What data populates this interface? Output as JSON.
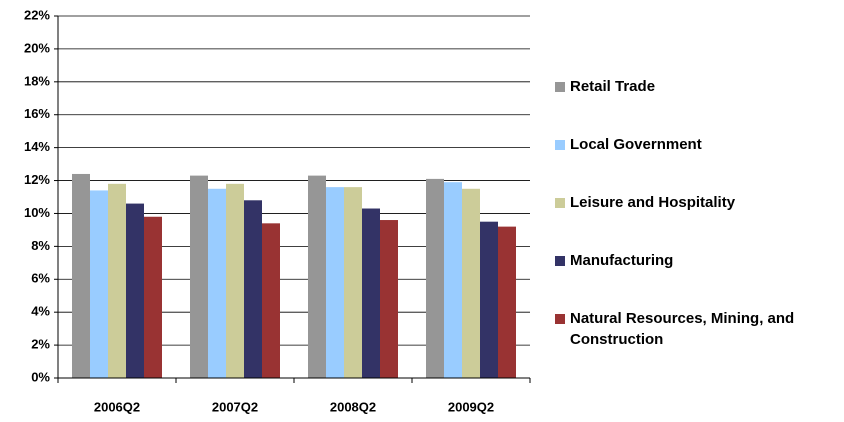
{
  "chart_data": {
    "type": "bar",
    "categories": [
      "2006Q2",
      "2007Q2",
      "2008Q2",
      "2009Q2"
    ],
    "series": [
      {
        "name": "Retail Trade",
        "color": "#969696",
        "values": [
          12.4,
          12.3,
          12.3,
          12.1
        ]
      },
      {
        "name": "Local Government",
        "color": "#99ccff",
        "values": [
          11.4,
          11.5,
          11.6,
          11.9
        ]
      },
      {
        "name": "Leisure and Hospitality",
        "color": "#cccc99",
        "values": [
          11.8,
          11.8,
          11.6,
          11.5
        ]
      },
      {
        "name": "Manufacturing",
        "color": "#333366",
        "values": [
          10.6,
          10.8,
          10.3,
          9.5
        ]
      },
      {
        "name": "Natural Resources, Mining, and Construction",
        "color": "#993333",
        "values": [
          9.8,
          9.4,
          9.6,
          9.2
        ]
      }
    ],
    "ylim": [
      0,
      22
    ],
    "yticks": [
      {
        "value": 0,
        "label": "0%"
      },
      {
        "value": 2,
        "label": "2%"
      },
      {
        "value": 4,
        "label": "4%"
      },
      {
        "value": 6,
        "label": "6%"
      },
      {
        "value": 8,
        "label": "8%"
      },
      {
        "value": 10,
        "label": "10%"
      },
      {
        "value": 12,
        "label": "12%"
      },
      {
        "value": 14,
        "label": "14%"
      },
      {
        "value": 16,
        "label": "16%"
      },
      {
        "value": 18,
        "label": "18%"
      },
      {
        "value": 20,
        "label": "20%"
      },
      {
        "value": 22,
        "label": "22%"
      }
    ],
    "grid": true,
    "legend": "right"
  }
}
